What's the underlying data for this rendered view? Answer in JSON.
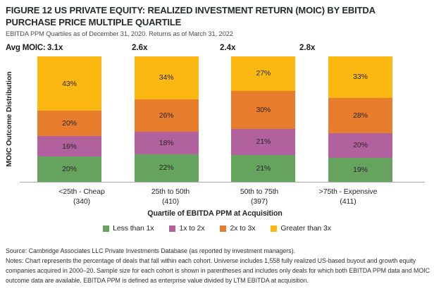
{
  "header": {
    "title": "FIGURE 12 US PRIVATE EQUITY: REALIZED INVESTMENT RETURN (MOIC) BY EBITDA PURCHASE PRICE MULTIPLE QUARTILE",
    "subtitle": "EBITDA PPM Quartiles as of December 31, 2020. Returns as of March 31, 2022"
  },
  "avg_moic": {
    "label": "Avg MOIC:",
    "values": [
      "3.1x",
      "2.6x",
      "2.4x",
      "2.8x"
    ]
  },
  "chart_data": {
    "type": "bar",
    "stacked": true,
    "title": "US Private Equity: Realized Investment Return (MOIC) by EBITDA Purchase Price Multiple Quartile",
    "categories": [
      "<25th - Cheap",
      "25th to 50th",
      "50th to 75th",
      ">75th - Expensive"
    ],
    "sample_sizes": [
      "(340)",
      "(410)",
      "(397)",
      "(411)"
    ],
    "series": [
      {
        "name": "Less than 1x",
        "color": "#66a35e",
        "values": [
          20,
          22,
          21,
          19
        ]
      },
      {
        "name": "1x to 2x",
        "color": "#b2619f",
        "values": [
          16,
          18,
          21,
          20
        ]
      },
      {
        "name": "2x to 3x",
        "color": "#e87d2d",
        "values": [
          20,
          26,
          30,
          28
        ]
      },
      {
        "name": "Greater than 3x",
        "color": "#fdb812",
        "values": [
          43,
          34,
          27,
          33
        ]
      }
    ],
    "value_suffix": "%",
    "xlabel": "Quartile of EBITDA PPM at Acquisition",
    "ylabel": "MOIC Outcome Distribution",
    "ylim": [
      0,
      100
    ],
    "grid": false,
    "legend_position": "bottom",
    "axis_line_color": "#a6a6a6"
  },
  "footer": {
    "source": "Source: Cambridge Associates LLC Private Investments Database (as reported by investment managers).",
    "notes": "Notes: Chart represents the percentage of deals that fall within each cohort. Universe includes 1,558 fully realized US-based buyout and growth equity companies acquired in 2000–20. Sample size for each cohort is shown in parentheses and includes only deals for which both EBITDA PPM data and MOIC outcome data are available. EBITDA PPM is defined as enterprise value divided by LTM EBITDA at acquisition."
  }
}
